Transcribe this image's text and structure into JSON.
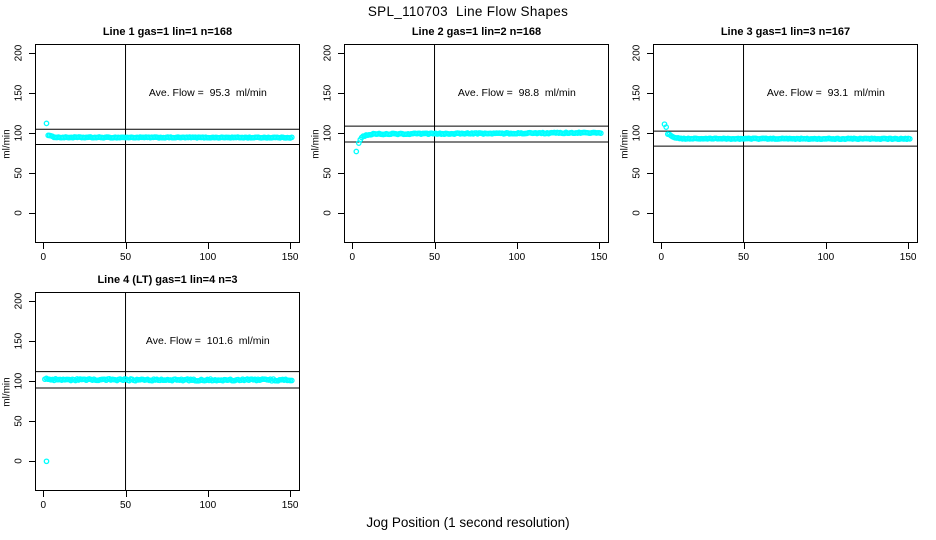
{
  "page": {
    "title": "SPL_110703  Line Flow Shapes",
    "xlabel": "Jog Position (1 second resolution)"
  },
  "colors": {
    "point": "#00FFFF",
    "axis": "#000000",
    "background": "#FFFFFF"
  },
  "chart_data": [
    {
      "type": "scatter",
      "title": "Line 1 gas=1 lin=1 n=168",
      "annotation": "Ave. Flow =  95.3  ml/min",
      "ave_flow_ml_min": 95.3,
      "n": 168,
      "ylabel": "ml/min",
      "xticks": [
        0,
        50,
        100,
        150
      ],
      "yticks": [
        0,
        50,
        100,
        150,
        200
      ],
      "xlim": [
        -5,
        156
      ],
      "ylim": [
        -37,
        211
      ],
      "vline_x": 50,
      "ref_lines": [
        104.8,
        85.8
      ],
      "outliers": [
        [
          2,
          112
        ]
      ],
      "band_profile": [
        [
          3,
          97.5
        ],
        [
          6,
          95.2
        ],
        [
          10,
          94.6
        ],
        [
          151,
          94.4
        ]
      ],
      "band_points": 168,
      "jitter": 0.5
    },
    {
      "type": "scatter",
      "title": "Line 2 gas=1 lin=2 n=168",
      "annotation": "Ave. Flow =  98.8  ml/min",
      "ave_flow_ml_min": 98.8,
      "n": 168,
      "ylabel": "ml/min",
      "xticks": [
        0,
        50,
        100,
        150
      ],
      "yticks": [
        0,
        50,
        100,
        150,
        200
      ],
      "xlim": [
        -5,
        156
      ],
      "ylim": [
        -37,
        211
      ],
      "vline_x": 50,
      "ref_lines": [
        108.7,
        88.9
      ],
      "outliers": [
        [
          2.5,
          77
        ]
      ],
      "band_profile": [
        [
          4,
          88
        ],
        [
          6,
          96
        ],
        [
          12,
          98.8
        ],
        [
          90,
          99.6
        ],
        [
          151,
          100.4
        ]
      ],
      "band_points": 168,
      "jitter": 0.7
    },
    {
      "type": "scatter",
      "title": "Line 3 gas=1 lin=3 n=167",
      "annotation": "Ave. Flow =  93.1  ml/min",
      "ave_flow_ml_min": 93.1,
      "n": 167,
      "ylabel": "ml/min",
      "xticks": [
        0,
        50,
        100,
        150
      ],
      "yticks": [
        0,
        50,
        100,
        150,
        200
      ],
      "xlim": [
        -5,
        156
      ],
      "ylim": [
        -37,
        211
      ],
      "vline_x": 50,
      "ref_lines": [
        102.4,
        83.8
      ],
      "outliers": [
        [
          2,
          111
        ],
        [
          3,
          107.5
        ]
      ],
      "band_profile": [
        [
          4,
          99
        ],
        [
          8,
          94.5
        ],
        [
          14,
          93
        ],
        [
          151,
          92.8
        ]
      ],
      "band_points": 166,
      "jitter": 0.5
    },
    {
      "type": "scatter",
      "title": "Line 4 (LT) gas=1 lin=4 n=3",
      "annotation": "Ave. Flow =  101.6  ml/min",
      "ave_flow_ml_min": 101.6,
      "n": 3,
      "ylabel": "ml/min",
      "xticks": [
        0,
        50,
        100,
        150
      ],
      "yticks": [
        0,
        50,
        100,
        150,
        200
      ],
      "xlim": [
        -5,
        156
      ],
      "ylim": [
        -37,
        211
      ],
      "vline_x": 50,
      "ref_lines": [
        111.8,
        91.4
      ],
      "outliers": [
        [
          2,
          0
        ]
      ],
      "band_profile": [
        [
          1,
          102.4
        ],
        [
          6,
          101.6
        ],
        [
          151,
          101.4
        ]
      ],
      "band_points": 162,
      "jitter": 1.1
    }
  ]
}
